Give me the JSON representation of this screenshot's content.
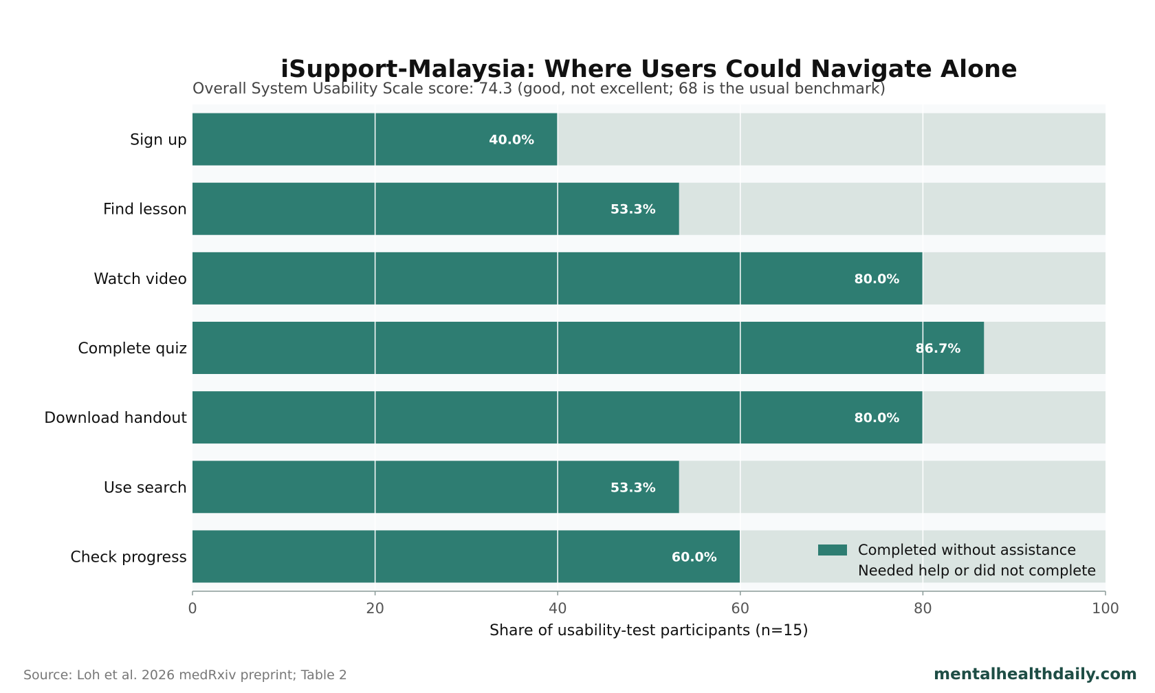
{
  "chart_data": {
    "type": "bar",
    "orientation": "horizontal",
    "stacked": true,
    "title": "iSupport-Malaysia: Where Users Could Navigate Alone",
    "subtitle": "Overall System Usability Scale score: 74.3 (good, not excellent; 68 is the usual benchmark)",
    "xlabel": "Share of usability-test participants (n=15)",
    "ylabel": "",
    "xlim": [
      0,
      100
    ],
    "xticks": [
      0,
      20,
      40,
      60,
      80,
      100
    ],
    "grid": true,
    "legend_position": "bottom-right",
    "categories": [
      "Sign up",
      "Find lesson",
      "Watch video",
      "Complete quiz",
      "Download handout",
      "Use search",
      "Check progress"
    ],
    "series": [
      {
        "name": "Completed without assistance",
        "color": "#2e7d72",
        "values": [
          40.0,
          53.3,
          80.0,
          86.7,
          80.0,
          53.3,
          60.0
        ],
        "labels": [
          "40.0%",
          "53.3%",
          "80.0%",
          "86.7%",
          "80.0%",
          "53.3%",
          "60.0%"
        ]
      },
      {
        "name": "Needed help or did not complete",
        "color": "#dae4e1",
        "values": [
          60.0,
          46.7,
          20.0,
          13.3,
          20.0,
          46.7,
          40.0
        ]
      }
    ]
  },
  "footer": {
    "source": "Source: Loh et al. 2026 medRxiv preprint; Table 2",
    "brand": "mentalhealthdaily.com"
  },
  "colors": {
    "plot_background": "#f8fafb",
    "grid": "#ffffff",
    "axis": "#8a9a98"
  }
}
